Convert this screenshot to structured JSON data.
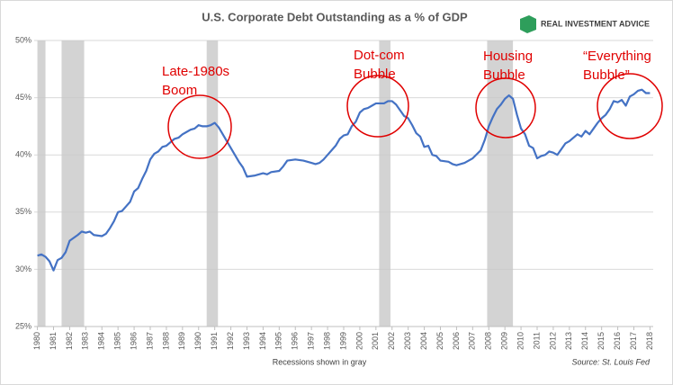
{
  "chart_data": {
    "type": "line",
    "title": "U.S. Corporate Debt Outstanding as a % of GDP",
    "brand": "REAL INVESTMENT ADVICE",
    "note": "Recessions shown in gray",
    "source": "Source: St. Louis Fed",
    "color": "#4472c4",
    "grid": true,
    "x": [
      1980,
      1980.25,
      1980.5,
      1980.75,
      1981,
      1981.25,
      1981.5,
      1981.75,
      1982,
      1982.5,
      1982.75,
      1983,
      1983.25,
      1983.5,
      1984,
      1984.25,
      1984.5,
      1984.75,
      1985,
      1985.25,
      1985.5,
      1985.75,
      1986,
      1986.25,
      1986.5,
      1986.75,
      1987,
      1987.25,
      1987.5,
      1987.75,
      1988,
      1988.25,
      1988.5,
      1988.75,
      1989,
      1989.25,
      1989.5,
      1989.75,
      1990,
      1990.25,
      1990.5,
      1990.75,
      1991,
      1991.25,
      1991.5,
      1991.75,
      1992,
      1992.25,
      1992.5,
      1992.75,
      1993,
      1993.5,
      1994,
      1994.25,
      1994.5,
      1995,
      1995.25,
      1995.5,
      1996,
      1996.5,
      1997,
      1997.25,
      1997.5,
      1997.75,
      1998,
      1998.5,
      1998.75,
      1999,
      1999.25,
      1999.5,
      1999.75,
      2000,
      2000.25,
      2000.5,
      2000.75,
      2001,
      2001.5,
      2001.75,
      2002,
      2002.25,
      2002.5,
      2002.75,
      2003,
      2003.25,
      2003.5,
      2003.75,
      2004,
      2004.25,
      2004.5,
      2004.75,
      2005,
      2005.5,
      2005.75,
      2006,
      2006.5,
      2007,
      2007.5,
      2007.75,
      2008,
      2008.25,
      2008.5,
      2008.75,
      2009,
      2009.25,
      2009.5,
      2009.75,
      2010,
      2010.25,
      2010.5,
      2010.75,
      2011,
      2011.25,
      2011.5,
      2011.75,
      2012,
      2012.25,
      2012.5,
      2012.75,
      2013,
      2013.5,
      2013.75,
      2014,
      2014.25,
      2014.5,
      2014.75,
      2015,
      2015.25,
      2015.5,
      2015.75,
      2016,
      2016.25,
      2016.5,
      2016.75,
      2017,
      2017.25,
      2017.5,
      2017.75,
      2018
    ],
    "values": [
      31.2,
      31.3,
      31.1,
      30.7,
      29.9,
      30.8,
      31,
      31.5,
      32.5,
      33,
      33.3,
      33.2,
      33.3,
      33,
      32.9,
      33.1,
      33.6,
      34.2,
      35,
      35.1,
      35.5,
      35.9,
      36.8,
      37.1,
      37.9,
      38.6,
      39.6,
      40.1,
      40.3,
      40.7,
      40.8,
      41.1,
      41.4,
      41.5,
      41.8,
      42,
      42.2,
      42.3,
      42.6,
      42.5,
      42.5,
      42.6,
      42.8,
      42.4,
      41.8,
      41.2,
      40.6,
      40,
      39.4,
      38.9,
      38.1,
      38.2,
      38.4,
      38.3,
      38.5,
      38.6,
      39,
      39.5,
      39.6,
      39.5,
      39.3,
      39.2,
      39.3,
      39.6,
      40,
      40.8,
      41.4,
      41.7,
      41.8,
      42.5,
      42.9,
      43.7,
      44,
      44.1,
      44.3,
      44.5,
      44.5,
      44.7,
      44.7,
      44.4,
      43.9,
      43.4,
      43.2,
      42.6,
      41.9,
      41.6,
      40.7,
      40.8,
      40,
      39.9,
      39.5,
      39.4,
      39.2,
      39.1,
      39.3,
      39.7,
      40.4,
      41.3,
      42.5,
      43.3,
      44,
      44.4,
      44.9,
      45.2,
      44.9,
      43.5,
      42.3,
      41.8,
      40.8,
      40.6,
      39.7,
      39.9,
      40,
      40.3,
      40.2,
      40,
      40.5,
      41,
      41.2,
      41.8,
      41.6,
      42.1,
      41.8,
      42.3,
      42.8,
      43.2,
      43.5,
      44,
      44.7,
      44.6,
      44.8,
      44.3,
      45.1,
      45.3,
      45.6,
      45.7,
      45.4,
      45.4
    ],
    "recessions": [
      [
        1980,
        1980.5
      ],
      [
        1981.5,
        1982.9
      ],
      [
        1990.5,
        1991.2
      ],
      [
        2001.2,
        2001.9
      ],
      [
        2007.9,
        2009.5
      ]
    ],
    "xlim": [
      1979.8,
      2018.2
    ],
    "xticks": [
      1980,
      1981,
      1982,
      1983,
      1984,
      1985,
      1986,
      1987,
      1988,
      1989,
      1990,
      1991,
      1992,
      1993,
      1994,
      1995,
      1996,
      1997,
      1998,
      1999,
      2000,
      2001,
      2002,
      2003,
      2004,
      2005,
      2006,
      2007,
      2008,
      2009,
      2010,
      2011,
      2012,
      2013,
      2014,
      2015,
      2016,
      2017,
      2018
    ],
    "ylim": [
      25,
      50
    ],
    "yticks": [
      {
        "value": 25,
        "label": "25%"
      },
      {
        "value": 30,
        "label": "30%"
      },
      {
        "value": 35,
        "label": "35%"
      },
      {
        "value": 40,
        "label": "40%"
      },
      {
        "value": 45,
        "label": "45%"
      },
      {
        "value": 50,
        "label": "50%"
      }
    ],
    "annotations": [
      {
        "lines": [
          "Late-1980s",
          "Boom"
        ]
      },
      {
        "lines": [
          "Dot-com",
          "Bubble"
        ]
      },
      {
        "lines": [
          "Housing",
          "Bubble"
        ]
      },
      {
        "lines": [
          "“Everything",
          "Bubble”"
        ]
      }
    ]
  }
}
